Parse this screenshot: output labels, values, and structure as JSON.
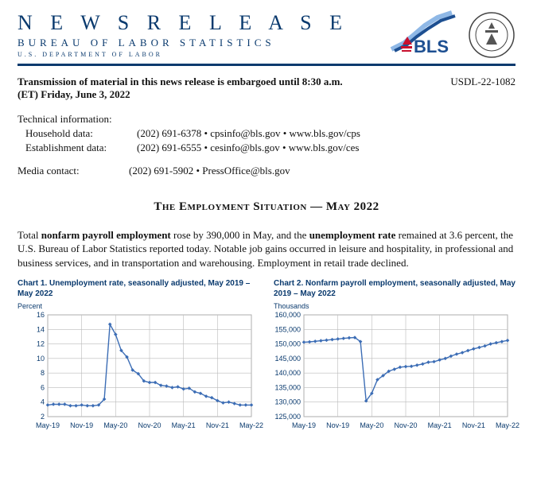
{
  "header": {
    "release": "N E W S   R E L E A S E",
    "bureau": "Bureau of Labor Statistics",
    "dept": "U.S.   Department   of   Labor",
    "usdl": "USDL-22-1082",
    "bls_logo_label": "BLS",
    "seal_aria": "Department of Labor Seal"
  },
  "embargo": "Transmission of material in this news release is embargoed until 8:30 a.m. (ET) Friday, June 3, 2022",
  "technical": {
    "heading": "Technical information:",
    "household_label": "Household data:",
    "household_val": "(202) 691-6378  •  cpsinfo@bls.gov  •  www.bls.gov/cps",
    "establishment_label": "Establishment data:",
    "establishment_val": "(202) 691-6555  •  cesinfo@bls.gov  •  www.bls.gov/ces",
    "media_label": "Media contact:",
    "media_val": "(202) 691-5902  •  PressOffice@bls.gov"
  },
  "title": "The Employment Situation — May 2022",
  "lede_parts": {
    "a": "Total ",
    "b": "nonfarm payroll employment",
    "c": " rose by 390,000 in May, and the ",
    "d": "unemployment rate",
    "e": " remained at 3.6 percent, the U.S. Bureau of Labor Statistics reported today. Notable job gains occurred in leisure and hospitality, in professional and business services, and in transportation and warehousing. Employment in retail trade declined."
  },
  "charts": {
    "colors": {
      "grid": "#bbbbbb",
      "tick_text": "#0a3a6e",
      "line": "#3c6db5",
      "marker": "#3c6db5",
      "background": "#ffffff",
      "plot_border": "#888888"
    },
    "fontsize_axis": 9,
    "marker_size": 2.3,
    "line_width": 1.4,
    "x_labels": [
      "May-19",
      "Nov-19",
      "May-20",
      "Nov-20",
      "May-21",
      "Nov-21",
      "May-22"
    ],
    "chart1": {
      "title": "Chart 1. Unemployment rate, seasonally adjusted, May 2019 – May 2022",
      "unit": "Percent",
      "type": "line",
      "ylim": [
        2.0,
        16.0
      ],
      "yticks": [
        2.0,
        4.0,
        6.0,
        8.0,
        10.0,
        12.0,
        14.0,
        16.0
      ],
      "y": [
        3.6,
        3.7,
        3.7,
        3.7,
        3.5,
        3.5,
        3.6,
        3.5,
        3.5,
        3.6,
        4.4,
        14.7,
        13.3,
        11.1,
        10.2,
        8.4,
        7.9,
        6.9,
        6.7,
        6.7,
        6.3,
        6.2,
        6.0,
        6.1,
        5.8,
        5.9,
        5.4,
        5.2,
        4.8,
        4.6,
        4.2,
        3.9,
        4.0,
        3.8,
        3.6,
        3.6,
        3.6
      ]
    },
    "chart2": {
      "title": "Chart 2. Nonfarm payroll employment, seasonally adjusted, May 2019 – May 2022",
      "unit": "Thousands",
      "type": "line",
      "ylim": [
        125000,
        160000
      ],
      "yticks": [
        125000,
        130000,
        135000,
        140000,
        145000,
        150000,
        155000,
        160000
      ],
      "y": [
        150600,
        150700,
        150900,
        151100,
        151300,
        151500,
        151700,
        151900,
        152100,
        152200,
        150800,
        130400,
        133000,
        137700,
        139100,
        140600,
        141300,
        142000,
        142200,
        142300,
        142700,
        143100,
        143700,
        143900,
        144500,
        145000,
        145800,
        146500,
        147000,
        147700,
        148300,
        148800,
        149300,
        150000,
        150400,
        150800,
        151200
      ]
    }
  }
}
